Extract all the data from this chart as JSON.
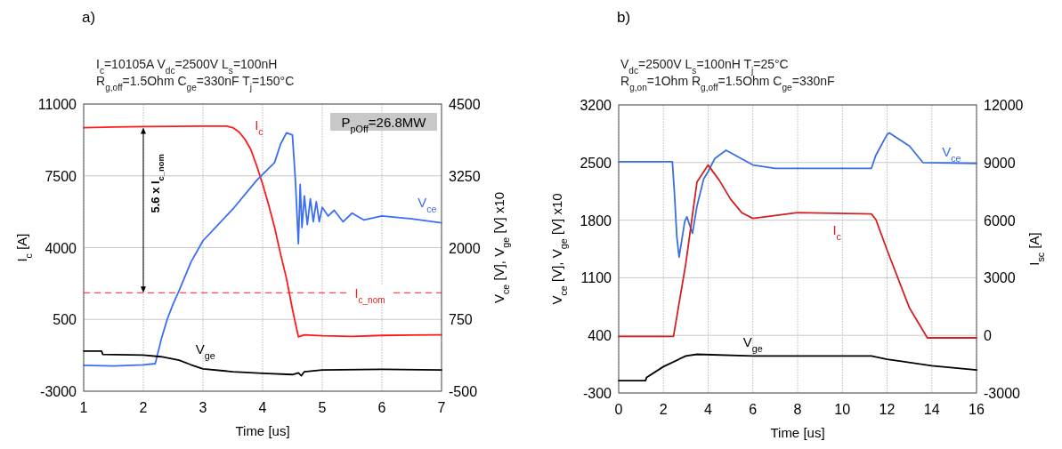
{
  "chart_data": [
    {
      "type": "line",
      "title": "a)",
      "subtitle": "I$_{c}$=10105A V$_{dc}$=2500V L$_{s}$=100nH\nR$_{g,off}$=1.5Ohm  C$_{ge}$=330nF T$_{j}$=150°C",
      "xlabel": "Time [us]",
      "ylabel": "I$_{c}$ [A]",
      "y2label": "V$_{ce}$ [V], V$_{ge}$ [V] x10",
      "xlim": [
        1,
        7
      ],
      "xticks": [
        1,
        2,
        3,
        4,
        5,
        6,
        7
      ],
      "ylim": [
        -3000,
        11000
      ],
      "yticks": [
        -3000,
        500,
        4000,
        7500,
        11000
      ],
      "y2lim": [
        -500,
        4500
      ],
      "y2ticks": [
        -500,
        750,
        2000,
        3250,
        4500
      ],
      "grid": true,
      "series": [
        {
          "name": "I$_{c}$",
          "color": "#ff1a1a",
          "x": [
            1,
            1.5,
            2,
            2.5,
            3,
            3.4,
            3.5,
            3.6,
            3.7,
            3.8,
            3.9,
            4.0,
            4.1,
            4.2,
            4.3,
            4.4,
            4.5,
            4.6,
            4.7,
            5,
            5.5,
            6,
            6.5,
            7
          ],
          "values": [
            9850,
            9880,
            9900,
            9910,
            9920,
            9920,
            9850,
            9650,
            9300,
            8800,
            8000,
            7100,
            6100,
            5000,
            3700,
            2500,
            1000,
            -350,
            -250,
            -300,
            -330,
            -280,
            -260,
            -250
          ]
        },
        {
          "name": "V$_{ce}$",
          "color": "#3b6ef5",
          "axis": "y2",
          "x": [
            1,
            1.5,
            2,
            2.2,
            2.3,
            2.4,
            2.5,
            2.6,
            2.8,
            3,
            3.5,
            3.9,
            4.2,
            4.3,
            4.4,
            4.5,
            4.55,
            4.6,
            4.63,
            4.66,
            4.7,
            4.75,
            4.8,
            4.85,
            4.9,
            4.95,
            5.0,
            5.1,
            5.2,
            5.35,
            5.5,
            5.7,
            6,
            6.5,
            7
          ],
          "values": [
            -50,
            -60,
            -40,
            -20,
            400,
            750,
            1020,
            1250,
            1750,
            2120,
            2670,
            3170,
            3480,
            3800,
            4000,
            3960,
            3170,
            2070,
            3100,
            2350,
            2900,
            2400,
            2850,
            2450,
            2800,
            2450,
            2700,
            2550,
            2650,
            2450,
            2600,
            2480,
            2550,
            2500,
            2430
          ]
        },
        {
          "name": "V$_{ge}$",
          "color": "#000000",
          "axis": "y2",
          "x": [
            1,
            1.3,
            1.32,
            2,
            2.3,
            2.6,
            2.8,
            3,
            3.5,
            4,
            4.5,
            4.6,
            4.65,
            4.7,
            5,
            6,
            7
          ],
          "values": [
            200,
            200,
            140,
            130,
            100,
            40,
            -40,
            -110,
            -160,
            -190,
            -210,
            -180,
            -230,
            -160,
            -130,
            -120,
            -130
          ]
        }
      ],
      "ref_lines": [
        {
          "axis": "y",
          "value": 1800,
          "label": "I$_{c_nom}$",
          "color": "#ff1a1a",
          "line_style": "dashed"
        }
      ],
      "annotations": [
        "P$_{pOff}$=26.8MW",
        "5.6 x I$_{c_nom}$"
      ]
    },
    {
      "type": "line",
      "title": "b)",
      "subtitle": "V$_{dc}$=2500V L$_{s}$=100nH T$_{j}$=25°C\nR$_{g,on}$=1Ohm R$_{g,off}$=1.5Ohm  C$_{ge}$=330nF",
      "xlabel": "Time [us]",
      "ylabel": "V$_{ce}$ [V], V$_{ge}$ [V] x10",
      "y2label": "I$_{sc}$ [A]",
      "xlim": [
        0,
        16
      ],
      "xticks": [
        0,
        2,
        4,
        6,
        8,
        10,
        12,
        14,
        16
      ],
      "ylim": [
        -300,
        3200
      ],
      "yticks": [
        -300,
        400,
        1100,
        1800,
        2500,
        3200
      ],
      "y2lim": [
        -3000,
        12000
      ],
      "y2ticks": [
        -3000,
        0,
        3000,
        6000,
        9000,
        12000
      ],
      "grid": true,
      "series": [
        {
          "name": "V$_{ce}$",
          "color": "#3a6fe0",
          "x": [
            0,
            2.4,
            2.5,
            2.6,
            2.7,
            2.8,
            2.95,
            3.05,
            3.2,
            3.3,
            3.5,
            3.8,
            4,
            4.3,
            4.8,
            5.2,
            6,
            7,
            9,
            11.3,
            11.5,
            12,
            12.1,
            13,
            13.6,
            16
          ],
          "values": [
            2510,
            2510,
            2100,
            1600,
            1350,
            1520,
            1780,
            1840,
            1720,
            1640,
            1970,
            2300,
            2390,
            2550,
            2650,
            2590,
            2470,
            2430,
            2430,
            2430,
            2590,
            2840,
            2860,
            2700,
            2500,
            2490
          ]
        },
        {
          "name": "I$_{c}$",
          "color": "#d42020",
          "axis": "y2",
          "x": [
            0,
            2.45,
            3,
            3.5,
            4,
            4.5,
            5,
            5.5,
            6,
            8,
            11.3,
            11.5,
            12,
            13,
            13.8,
            16
          ],
          "values": [
            -50,
            -50,
            3730,
            7980,
            8870,
            8070,
            7100,
            6390,
            6090,
            6390,
            6320,
            6030,
            4440,
            1430,
            -130,
            -130
          ]
        },
        {
          "name": "V$_{ge}$",
          "color": "#000000",
          "x": [
            0,
            1.2,
            1.25,
            2,
            3,
            3.5,
            6,
            11.3,
            12,
            14,
            16
          ],
          "values": [
            -150,
            -150,
            -110,
            20,
            150,
            170,
            150,
            150,
            110,
            30,
            -20
          ]
        }
      ]
    }
  ]
}
